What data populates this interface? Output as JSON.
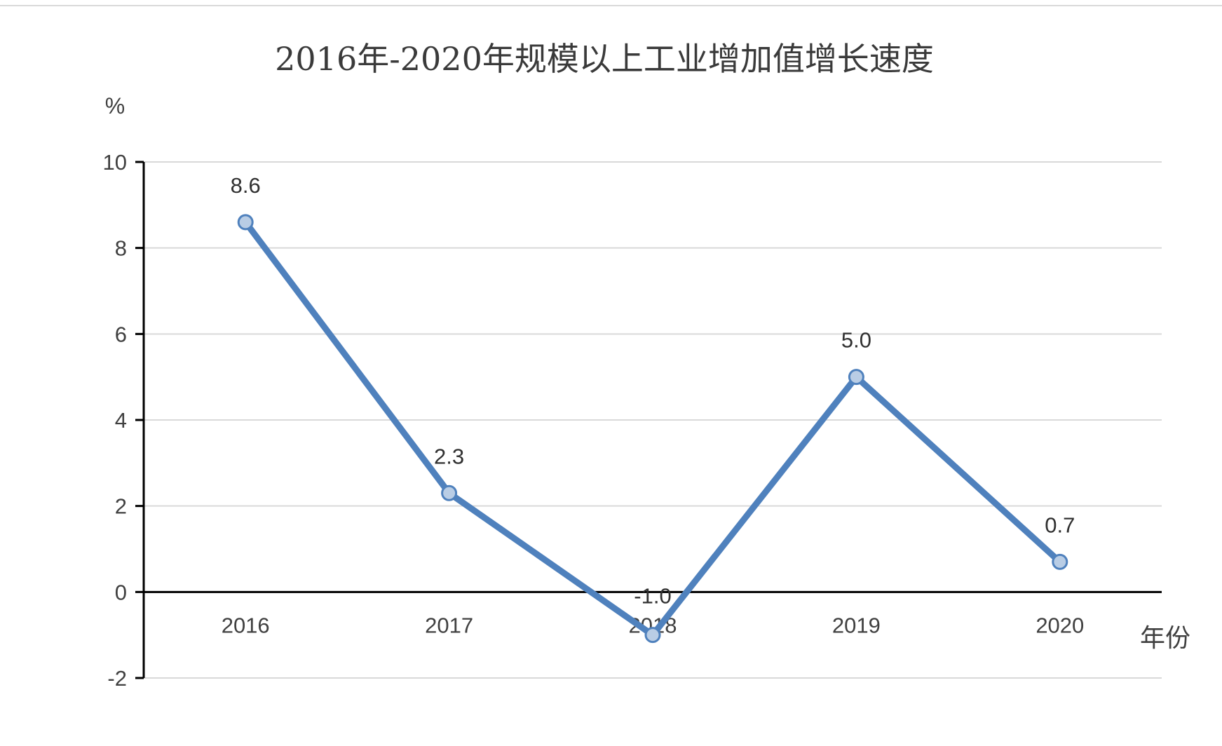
{
  "chart_data": {
    "type": "line",
    "title": "2016年-2020年规模以上工业增加值增长速度",
    "ylabel": "%",
    "xlabel": "年份",
    "categories": [
      "2016",
      "2017",
      "2018",
      "2019",
      "2020"
    ],
    "series": [
      {
        "values": [
          8.6,
          2.3,
          -1.0,
          5.0,
          0.7
        ],
        "data_labels": [
          "8.6",
          "2.3",
          "-1.0",
          "5.0",
          "0.7"
        ]
      }
    ],
    "ylim": [
      -2,
      10
    ],
    "yticks": [
      10,
      8,
      6,
      4,
      2,
      0,
      -2
    ],
    "grid": true,
    "colors": {
      "line": "#4f81bd",
      "marker_fill": "#b9cde5",
      "grid": "#d9d9d9",
      "axis": "#000000"
    }
  }
}
